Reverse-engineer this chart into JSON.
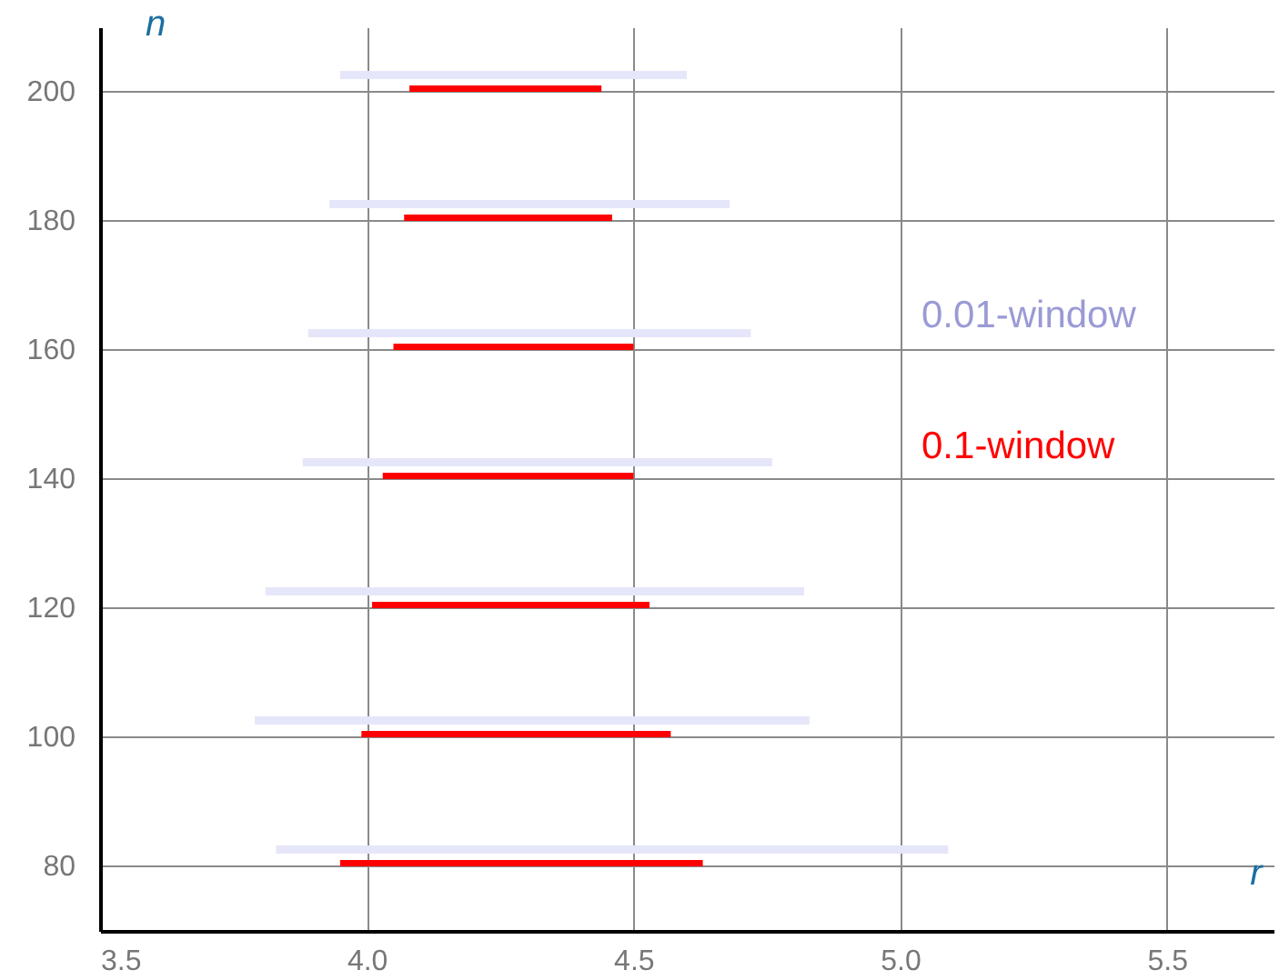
{
  "chart_data": {
    "type": "bar",
    "orientation": "horizontal",
    "xlabel": "r",
    "ylabel": "n",
    "categories": [
      "200",
      "180",
      "160",
      "140",
      "120",
      "100",
      "80"
    ],
    "series": [
      {
        "name": "0.01-window",
        "color": "#e6e6fa",
        "base": [
          3.95,
          3.93,
          3.89,
          3.88,
          3.81,
          3.79,
          3.83
        ],
        "values": [
          0.65,
          0.75,
          0.83,
          0.88,
          1.01,
          1.04,
          1.26
        ]
      },
      {
        "name": "0.1-window",
        "color": "#ff0000",
        "base": [
          4.08,
          4.07,
          4.05,
          4.03,
          4.01,
          3.99,
          3.95
        ],
        "values": [
          0.36,
          0.39,
          0.45,
          0.47,
          0.52,
          0.58,
          0.68
        ]
      }
    ],
    "xlim": [
      3.5,
      5.7
    ],
    "xticks": [
      3.5,
      {
        "value": 4,
        "label": "4.0"
      },
      4.5,
      {
        "value": 5,
        "label": "5.0"
      },
      5.5
    ],
    "grid": true,
    "legend": "right"
  }
}
